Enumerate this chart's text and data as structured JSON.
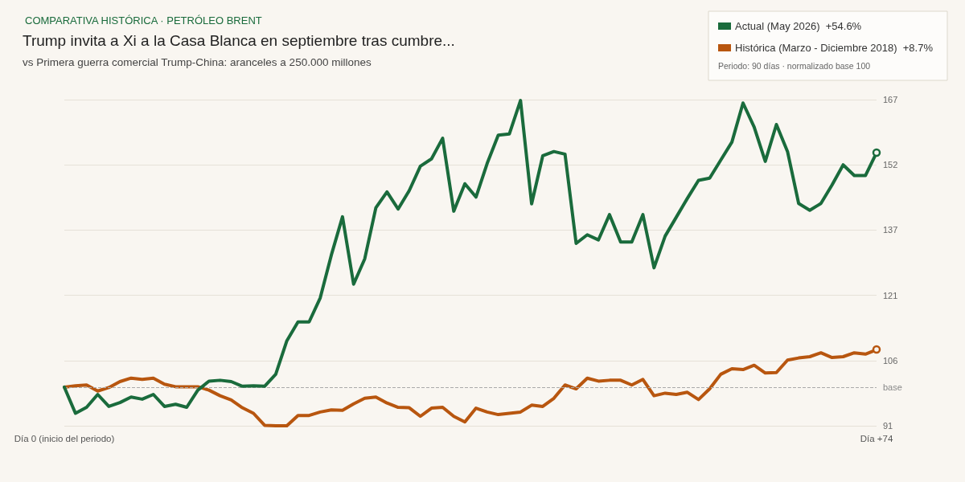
{
  "chart_data": {
    "type": "line",
    "title": "Trump invita a Xi a la Casa Blanca en septiembre tras cumbre...",
    "subtitle": "vs Primera guerra comercial Trump-China: aranceles a 250.000 millones",
    "annotations": [
      "COMPARATIVA HISTÓRICA · PETRÓLEO BRENT",
      "Periodo: 90 días · normalizado base 100"
    ],
    "categories": [
      "Día 0 (inicio del periodo)",
      null,
      null,
      null,
      null,
      null,
      null,
      null,
      null,
      null,
      null,
      null,
      null,
      null,
      null,
      null,
      null,
      null,
      null,
      null,
      null,
      null,
      null,
      null,
      null,
      null,
      null,
      null,
      null,
      null,
      null,
      null,
      null,
      null,
      null,
      null,
      null,
      null,
      null,
      null,
      null,
      null,
      null,
      null,
      null,
      null,
      null,
      null,
      null,
      null,
      null,
      null,
      null,
      null,
      null,
      null,
      null,
      null,
      null,
      null,
      null,
      null,
      null,
      null,
      null,
      null,
      null,
      null,
      null,
      null,
      null,
      null,
      null,
      "Día +74"
    ],
    "series": [
      {
        "name": "Actual (May 2026)  +54.6%",
        "color": "#1a6b3c",
        "values": [
          100,
          93.9,
          95.3,
          98.3,
          95.5,
          96.4,
          97.7,
          97.2,
          98.3,
          95.5,
          96.0,
          95.3,
          99.3,
          101.4,
          101.6,
          101.3,
          100.2,
          100.3,
          100.2,
          103.0,
          110.8,
          115.2,
          115.2,
          120.8,
          130.8,
          139.7,
          124.0,
          129.9,
          141.8,
          145.5,
          141.5,
          145.8,
          151.5,
          153.2,
          158.0,
          141.0,
          147.4,
          144.3,
          152.1,
          158.7,
          159.0,
          166.8,
          142.7,
          153.9,
          154.9,
          154.3,
          133.5,
          135.5,
          134.3,
          140.2,
          133.8,
          133.8,
          140.2,
          127.8,
          135.2,
          139.6,
          144.0,
          148.2,
          148.7,
          152.9,
          157.1,
          166.2,
          160.6,
          152.6,
          161.2,
          154.9,
          142.8,
          141.2,
          142.8,
          147.1,
          151.8,
          149.3,
          149.3,
          154.6
        ]
      },
      {
        "name": "Histórica (Marzo - Diciembre 2018)  +8.7%",
        "color": "#b8560f",
        "values": [
          100,
          100.3,
          100.5,
          99.1,
          99.9,
          101.3,
          102.1,
          101.8,
          102.1,
          100.7,
          100.1,
          100.1,
          100.1,
          99.3,
          98.0,
          97.0,
          95.2,
          93.9,
          91.1,
          91.0,
          91.0,
          93.4,
          93.4,
          94.2,
          94.7,
          94.6,
          96.1,
          97.4,
          97.7,
          96.3,
          95.3,
          95.2,
          93.2,
          95.1,
          95.3,
          93.2,
          91.9,
          95.1,
          94.2,
          93.6,
          93.9,
          94.2,
          95.8,
          95.5,
          97.4,
          100.5,
          99.6,
          102.1,
          101.4,
          101.6,
          101.6,
          100.5,
          101.8,
          98.0,
          98.6,
          98.3,
          98.8,
          97.1,
          99.6,
          103.0,
          104.3,
          104.1,
          105.1,
          103.3,
          103.4,
          106.3,
          106.8,
          107.1,
          108.0,
          106.9,
          107.1,
          108.0,
          107.7,
          108.7
        ]
      }
    ],
    "ylim": [
      91,
      167
    ],
    "yticks": [
      91,
      {
        "value": 106.2,
        "label": "106"
      },
      {
        "value": 121.4,
        "label": "121"
      },
      {
        "value": 136.6,
        "label": "137"
      },
      {
        "value": 151.8,
        "label": "152"
      },
      167
    ],
    "ref_lines": [
      {
        "axis": "y",
        "value": 100,
        "label": "base",
        "color": "#aaaaaa",
        "line_style": "dashed"
      }
    ],
    "grid": "y",
    "legend": "top right",
    "line_style": "solid"
  }
}
